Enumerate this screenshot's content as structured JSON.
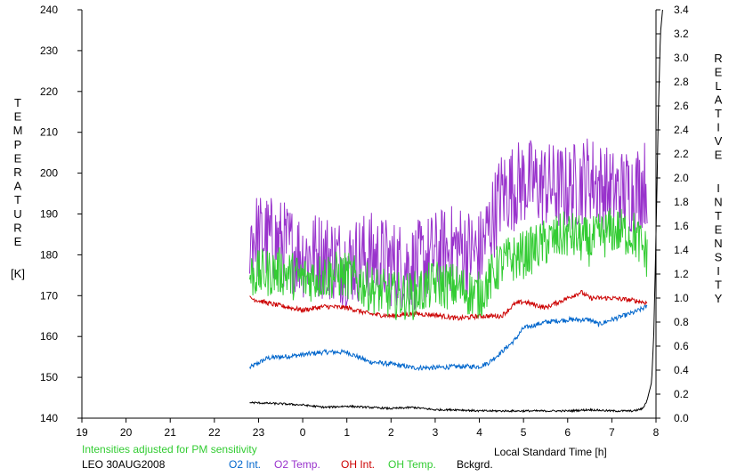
{
  "chart_data": {
    "type": "line",
    "left_axis_label_letters": [
      "T",
      "E",
      "M",
      "P",
      "E",
      "R",
      "A",
      "T",
      "U",
      "R",
      "E"
    ],
    "left_axis_unit": "[K]",
    "right_axis_label_line1": [
      "R",
      "E",
      "L",
      "A",
      "T",
      "I",
      "V",
      "E"
    ],
    "right_axis_label_line2": [
      "I",
      "N",
      "T",
      "E",
      "N",
      "S",
      "I",
      "T",
      "Y"
    ],
    "xlabel": "Local Standard Time [h]",
    "note": "Intensities adjusted for PM sensitivity",
    "station": "LEO 30AUG2008",
    "x_ticks": [
      19,
      20,
      21,
      22,
      23,
      0,
      1,
      2,
      3,
      4,
      5,
      6,
      7,
      8
    ],
    "x_tick_labels": [
      "19",
      "20",
      "21",
      "22",
      "23",
      "0",
      "1",
      "2",
      "3",
      "4",
      "5",
      "6",
      "7",
      "8"
    ],
    "x_range_hours": [
      19,
      32
    ],
    "y_left_ticks": [
      "140",
      "150",
      "160",
      "170",
      "180",
      "190",
      "200",
      "210",
      "220",
      "230",
      "240"
    ],
    "y_left_range": [
      140,
      240
    ],
    "y_right_ticks": [
      "0.0",
      "0.2",
      "0.4",
      "0.6",
      "0.8",
      "1.0",
      "1.2",
      "1.4",
      "1.6",
      "1.8",
      "2.0",
      "2.2",
      "2.4",
      "2.6",
      "2.8",
      "3.0",
      "3.2",
      "3.4"
    ],
    "y_right_range": [
      0,
      3.4
    ],
    "grid": false,
    "legend_position": "bottom",
    "series": [
      {
        "name": "O2 Int.",
        "axis": "right",
        "color": "#0066cc",
        "noise": 0.02,
        "x": [
          22.8,
          23.2,
          23.8,
          24.5,
          25.0,
          25.5,
          26.0,
          26.5,
          27.0,
          27.5,
          28.0,
          28.2,
          28.5,
          28.8,
          29.0,
          29.5,
          30.0,
          30.5,
          30.7,
          31.0,
          31.5,
          31.8
        ],
        "values": [
          0.42,
          0.5,
          0.52,
          0.55,
          0.55,
          0.47,
          0.45,
          0.42,
          0.42,
          0.43,
          0.43,
          0.46,
          0.55,
          0.65,
          0.75,
          0.8,
          0.82,
          0.82,
          0.78,
          0.82,
          0.88,
          0.93
        ]
      },
      {
        "name": "O2 Temp.",
        "axis": "left",
        "color": "#9933cc",
        "noise": 11,
        "x": [
          22.8,
          23.5,
          24.0,
          24.5,
          25.0,
          25.5,
          26.0,
          26.5,
          27.0,
          27.5,
          28.0,
          28.5,
          29.0,
          29.5,
          30.0,
          30.5,
          31.0,
          31.5,
          31.8
        ],
        "values": [
          185,
          183,
          180,
          180,
          178,
          180,
          178,
          177,
          180,
          182,
          180,
          195,
          198,
          197,
          196,
          199,
          195,
          196,
          198
        ]
      },
      {
        "name": "OH Int.",
        "axis": "right",
        "color": "#cc0000",
        "noise": 0.02,
        "x": [
          22.8,
          23.3,
          24.0,
          24.5,
          25.0,
          25.5,
          26.0,
          26.5,
          27.0,
          27.5,
          28.0,
          28.5,
          28.8,
          29.0,
          29.5,
          30.0,
          30.3,
          30.5,
          31.0,
          31.5,
          31.8
        ],
        "values": [
          1.0,
          0.95,
          0.9,
          0.93,
          0.92,
          0.87,
          0.85,
          0.87,
          0.86,
          0.83,
          0.85,
          0.85,
          0.95,
          0.97,
          0.92,
          1.0,
          1.05,
          1.0,
          1.0,
          0.98,
          0.96
        ]
      },
      {
        "name": "OH Temp.",
        "axis": "left",
        "color": "#33cc33",
        "noise": 6,
        "x": [
          22.8,
          23.5,
          24.0,
          24.5,
          25.0,
          25.5,
          26.0,
          26.5,
          27.0,
          27.5,
          28.0,
          28.5,
          29.0,
          29.5,
          30.0,
          30.5,
          31.0,
          31.5,
          31.8
        ],
        "values": [
          175,
          176,
          174,
          175,
          175,
          172,
          170,
          170,
          173,
          172,
          170,
          178,
          180,
          183,
          185,
          183,
          186,
          185,
          180
        ]
      },
      {
        "name": "Bckgrd.",
        "axis": "right",
        "color": "#000000",
        "noise": 0.008,
        "x": [
          22.8,
          23.5,
          24.0,
          24.5,
          25.0,
          25.5,
          26.0,
          26.5,
          27.0,
          27.5,
          28.0,
          28.5,
          29.0,
          29.5,
          30.0,
          30.5,
          31.0,
          31.5,
          31.7,
          31.8,
          31.9,
          31.95,
          32.0,
          32.05,
          32.1,
          32.15
        ],
        "values": [
          0.13,
          0.12,
          0.11,
          0.09,
          0.1,
          0.09,
          0.08,
          0.09,
          0.07,
          0.07,
          0.06,
          0.06,
          0.06,
          0.06,
          0.06,
          0.07,
          0.06,
          0.06,
          0.08,
          0.15,
          0.3,
          0.7,
          1.5,
          2.5,
          3.2,
          3.4
        ]
      }
    ]
  }
}
